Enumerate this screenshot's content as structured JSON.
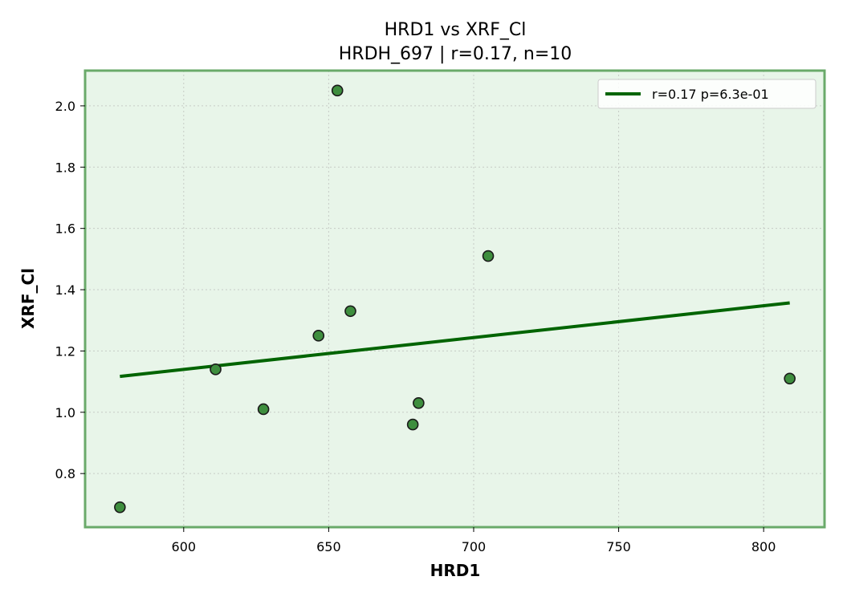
{
  "chart_data": {
    "type": "scatter",
    "title": "HRD1 vs XRF_Cl",
    "subtitle": "HRDH_697 | r=0.17, n=10",
    "xlabel": "HRD1",
    "ylabel": "XRF_Cl",
    "xlim": [
      566,
      821
    ],
    "ylim": [
      0.625,
      2.115
    ],
    "x_ticks": [
      {
        "value": 600,
        "label": "600"
      },
      {
        "value": 650,
        "label": "650"
      },
      {
        "value": 700,
        "label": "700"
      },
      {
        "value": 750,
        "label": "750"
      },
      {
        "value": 800,
        "label": "800"
      }
    ],
    "y_ticks": [
      {
        "value": 0.8,
        "label": "0.8"
      },
      {
        "value": 1.0,
        "label": "1.0"
      },
      {
        "value": 1.2,
        "label": "1.2"
      },
      {
        "value": 1.4,
        "label": "1.4"
      },
      {
        "value": 1.6,
        "label": "1.6"
      },
      {
        "value": 1.8,
        "label": "1.8"
      },
      {
        "value": 2.0,
        "label": "2.0"
      }
    ],
    "points": [
      {
        "x": 578,
        "y": 0.69
      },
      {
        "x": 611,
        "y": 1.14
      },
      {
        "x": 627.5,
        "y": 1.01
      },
      {
        "x": 646.5,
        "y": 1.25
      },
      {
        "x": 653,
        "y": 2.05
      },
      {
        "x": 657.5,
        "y": 1.33
      },
      {
        "x": 679,
        "y": 0.96
      },
      {
        "x": 681,
        "y": 1.03
      },
      {
        "x": 705,
        "y": 1.51
      },
      {
        "x": 809,
        "y": 1.11
      }
    ],
    "fit_line": {
      "x": [
        578,
        809
      ],
      "y": [
        1.117,
        1.357
      ]
    },
    "legend": {
      "label": "r=0.17  p=6.3e-01",
      "placement": "upper right"
    },
    "grid": true,
    "colors": {
      "plot_background": "#e8f5e9",
      "frame": "#6aaa6a",
      "point_fill": "#3e8e3e",
      "point_edge": "#1a1a1a",
      "fit_line": "#006400"
    }
  }
}
